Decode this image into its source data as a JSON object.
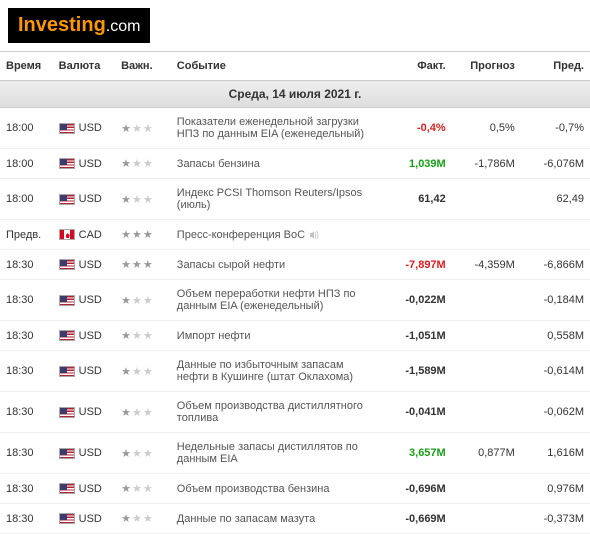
{
  "logo": {
    "part1": "Investing",
    "part2": ".com"
  },
  "headers": {
    "time": "Время",
    "currency": "Валюта",
    "importance": "Важн.",
    "event": "Событие",
    "actual": "Факт.",
    "forecast": "Прогноз",
    "previous": "Пред."
  },
  "date_label": "Среда, 14 июля 2021 г.",
  "colors": {
    "positive": "#1a9e1a",
    "negative": "#d81e1e",
    "star_on": "#999999",
    "star_off": "#cccccc",
    "row_border": "#eeeeee"
  },
  "rows": [
    {
      "time": "18:00",
      "flag": "us",
      "currency": "USD",
      "importance": 1,
      "event": "Показатели еженедельной загрузки НПЗ по данным EIA (еженедельный)",
      "actual": "-0,4%",
      "actual_class": "neg",
      "forecast": "0,5%",
      "previous": "-0,7%"
    },
    {
      "time": "18:00",
      "flag": "us",
      "currency": "USD",
      "importance": 1,
      "event": "Запасы бензина",
      "actual": "1,039M",
      "actual_class": "pos",
      "forecast": "-1,786M",
      "previous": "-6,076M"
    },
    {
      "time": "18:00",
      "flag": "us",
      "currency": "USD",
      "importance": 1,
      "event": "Индекс PCSI Thomson Reuters/Ipsos (июль)",
      "actual": "61,42",
      "actual_class": "bold",
      "forecast": "",
      "previous": "62,49"
    },
    {
      "time": "Предв.",
      "flag": "ca",
      "currency": "CAD",
      "importance": 3,
      "event": "Пресс-конференция BoC",
      "audio": true,
      "actual": "",
      "actual_class": "",
      "forecast": "",
      "previous": ""
    },
    {
      "time": "18:30",
      "flag": "us",
      "currency": "USD",
      "importance": 3,
      "event": "Запасы сырой нефти",
      "actual": "-7,897M",
      "actual_class": "neg",
      "forecast": "-4,359M",
      "previous": "-6,866M"
    },
    {
      "time": "18:30",
      "flag": "us",
      "currency": "USD",
      "importance": 1,
      "event": "Объем переработки нефти НПЗ по данным EIA (еженедельный)",
      "actual": "-0,022M",
      "actual_class": "bold",
      "forecast": "",
      "previous": "-0,184M"
    },
    {
      "time": "18:30",
      "flag": "us",
      "currency": "USD",
      "importance": 1,
      "event": "Импорт нефти",
      "actual": "-1,051M",
      "actual_class": "bold",
      "forecast": "",
      "previous": "0,558M"
    },
    {
      "time": "18:30",
      "flag": "us",
      "currency": "USD",
      "importance": 1,
      "event": "Данные по избыточным запасам нефти в Кушинге (штат Оклахома)",
      "actual": "-1,589M",
      "actual_class": "bold",
      "forecast": "",
      "previous": "-0,614M"
    },
    {
      "time": "18:30",
      "flag": "us",
      "currency": "USD",
      "importance": 1,
      "event": "Объем производства дистиллятного топлива",
      "actual": "-0,041M",
      "actual_class": "bold",
      "forecast": "",
      "previous": "-0,062M"
    },
    {
      "time": "18:30",
      "flag": "us",
      "currency": "USD",
      "importance": 1,
      "event": "Недельные запасы дистиллятов по данным EIA",
      "actual": "3,657M",
      "actual_class": "pos",
      "forecast": "0,877M",
      "previous": "1,616M"
    },
    {
      "time": "18:30",
      "flag": "us",
      "currency": "USD",
      "importance": 1,
      "event": "Объем производства бензина",
      "actual": "-0,696M",
      "actual_class": "bold",
      "forecast": "",
      "previous": "0,976M"
    },
    {
      "time": "18:30",
      "flag": "us",
      "currency": "USD",
      "importance": 1,
      "event": "Данные по запасам мазута",
      "actual": "-0,669M",
      "actual_class": "bold",
      "forecast": "",
      "previous": "-0,373M"
    }
  ]
}
